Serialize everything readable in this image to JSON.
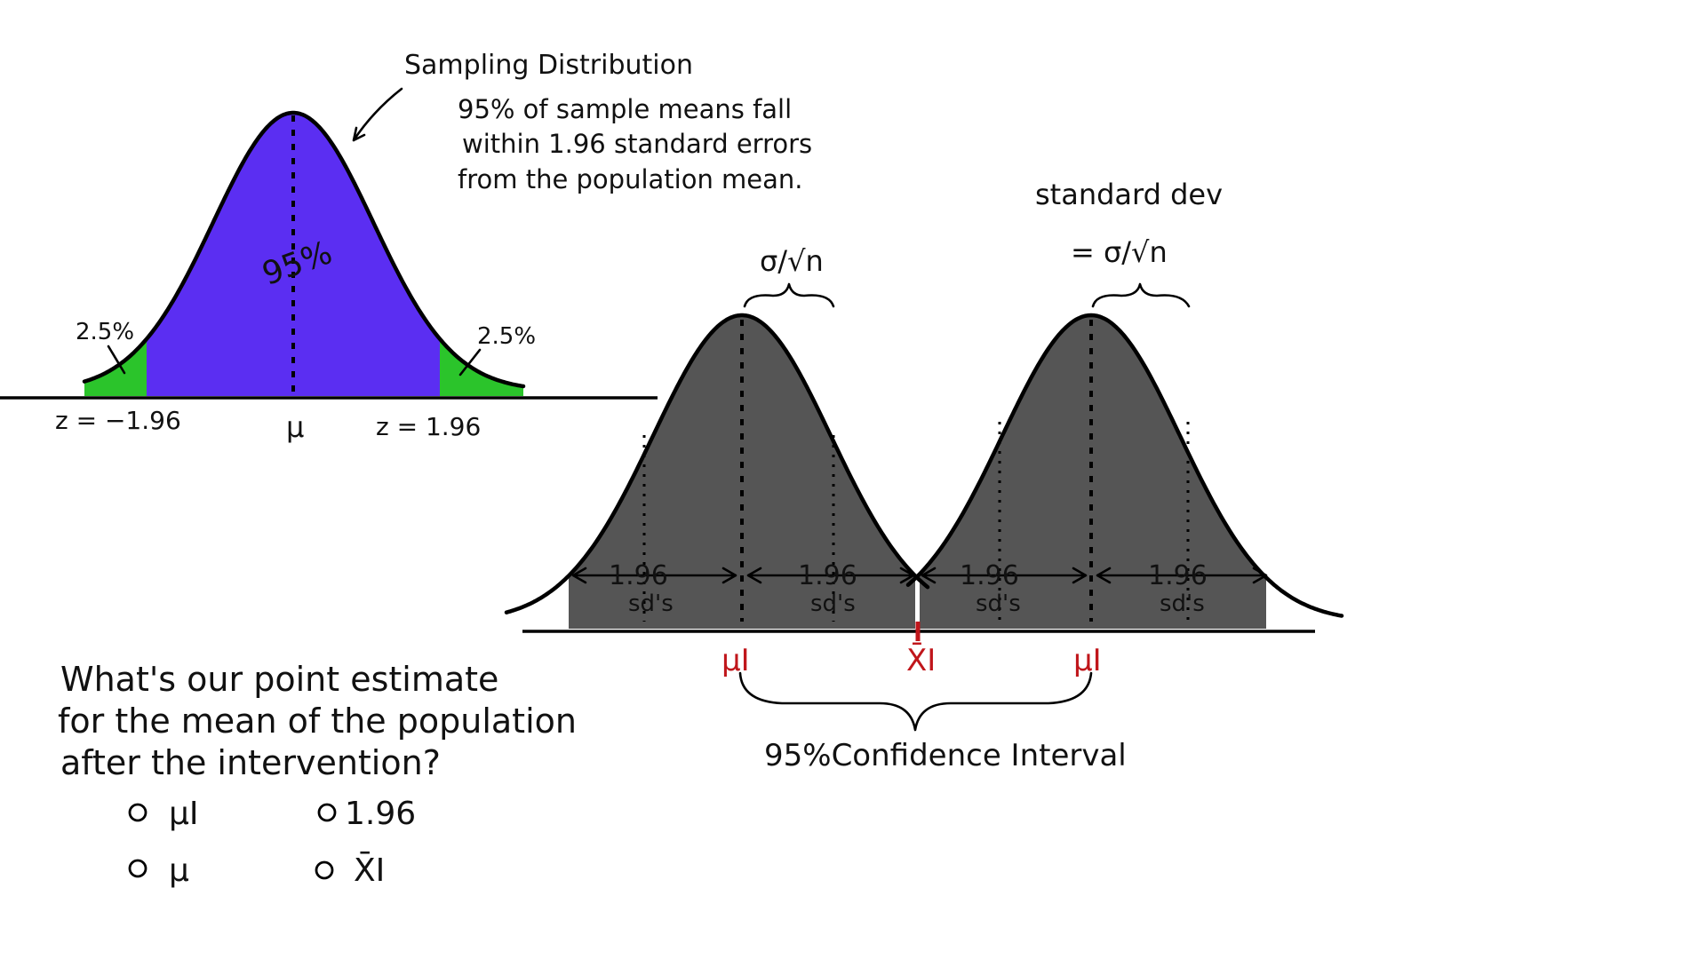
{
  "colors": {
    "center_fill": "#5b2ef2",
    "tail_fill": "#2bc42b",
    "sample_fill": "#555555",
    "ink": "#111111",
    "accent_red": "#c0161b"
  },
  "sampling": {
    "title": "Sampling Distribution",
    "note_lines": [
      "95% of sample means fall",
      "within 1.96 standard errors",
      "from the population mean."
    ],
    "center_pct": "95%",
    "left_tail_pct": "2.5%",
    "right_tail_pct": "2.5%",
    "left_z": "z = −1.96",
    "center_label": "μ",
    "right_z": "z = 1.96"
  },
  "intervention": {
    "left_se_label": "σ/√n",
    "right_sd_title": "standard dev",
    "right_se_label": "= σ/√n",
    "span_value": "1.96",
    "span_unit": "sd's",
    "mu_i_label": "μI",
    "xbar_i_label": "X̄I",
    "ci_label": "95%Confidence Interval"
  },
  "quiz": {
    "question_lines": [
      "What's our point estimate",
      "for the mean of the population",
      "after the intervention?"
    ],
    "options": [
      {
        "label": "μI",
        "icon": "radio-circle"
      },
      {
        "label": "1.96",
        "icon": "radio-circle"
      },
      {
        "label": "μ",
        "icon": "radio-circle"
      },
      {
        "label": "X̄I",
        "icon": "radio-circle"
      }
    ]
  }
}
